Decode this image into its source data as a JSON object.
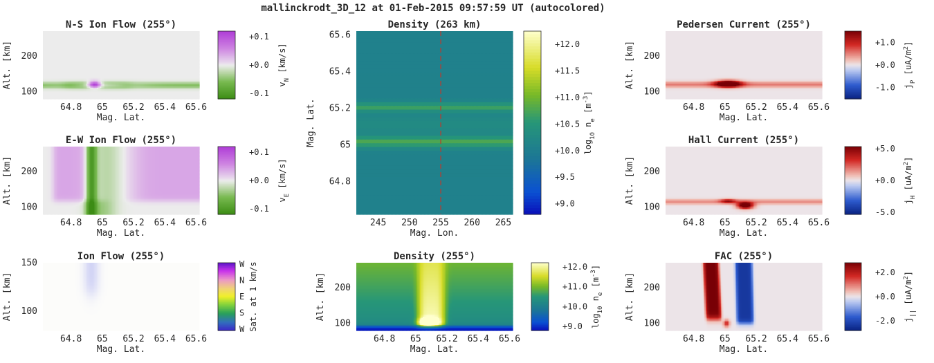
{
  "suptitle": "mallinckrodt_3D_12 at 01-Feb-2015 09:57:59 UT (autocolored)",
  "chart_data": [
    {
      "id": "ns-flow",
      "type": "heatmap",
      "title": "N-S Ion Flow (255°)",
      "xlabel": "Mag. Lat.",
      "ylabel": "Alt. [km]",
      "xlim": [
        64.62,
        65.62
      ],
      "ylim": [
        80,
        270
      ],
      "xticks": [
        64.8,
        65.0,
        65.2,
        65.4,
        65.6
      ],
      "xticklabels": [
        "64.8",
        "65",
        "65.2",
        "65.4",
        "65.6"
      ],
      "yticks": [
        100,
        200
      ],
      "yticklabels": [
        "100",
        "200"
      ],
      "colormap": "purple-green",
      "colorbar": {
        "label_main": "v",
        "label_sub": "N",
        "label_tail": " [km/s]",
        "ticks": [
          "+0.1",
          "+0.0",
          "-0.1"
        ],
        "range": [
          -0.12,
          0.12
        ]
      }
    },
    {
      "id": "density-263",
      "type": "heatmap",
      "title": "Density (263 km)",
      "xlabel": "Mag. Lon.",
      "ylabel": "Mag. Lat.",
      "xlim": [
        241.5,
        266.5
      ],
      "ylim": [
        64.62,
        65.62
      ],
      "xticks": [
        245,
        250,
        255,
        260,
        265
      ],
      "xticklabels": [
        "245",
        "250",
        "255",
        "260",
        "265"
      ],
      "yticks": [
        64.8,
        65.0,
        65.2,
        65.4,
        65.6
      ],
      "yticklabels": [
        "64.8",
        "65",
        "65.2",
        "65.4",
        "65.6"
      ],
      "colormap": "parula",
      "cut_line_lon": 255,
      "colorbar": {
        "label_main": "log",
        "label_sub": "10",
        "label_tail": " n",
        "label_sub2": "e",
        "label_unit": " [m",
        "label_sup": "-3",
        "label_close": "]",
        "ticks": [
          "+12.0",
          "+11.5",
          "+11.0",
          "+10.5",
          "+10.0",
          "+9.5",
          "+9.0"
        ],
        "range": [
          8.8,
          12.25
        ]
      }
    },
    {
      "id": "pedersen",
      "type": "heatmap",
      "title": "Pedersen Current (255°)",
      "xlabel": "Mag. Lat.",
      "ylabel": "Alt. [km]",
      "xlim": [
        64.62,
        65.62
      ],
      "ylim": [
        80,
        270
      ],
      "xticks": [
        64.8,
        65.0,
        65.2,
        65.4,
        65.6
      ],
      "xticklabels": [
        "64.8",
        "65",
        "65.2",
        "65.4",
        "65.6"
      ],
      "yticks": [
        100,
        200
      ],
      "yticklabels": [
        "100",
        "200"
      ],
      "colormap": "red-blue",
      "colorbar": {
        "label_main": "j",
        "label_sub": "P",
        "label_tail": " [uA/m",
        "label_sup": "2",
        "label_close": "]",
        "ticks": [
          "+1.0",
          "+0.0",
          "-1.0"
        ],
        "range": [
          -1.5,
          1.5
        ]
      }
    },
    {
      "id": "ew-flow",
      "type": "heatmap",
      "title": "E-W Ion Flow (255°)",
      "xlabel": "Mag. Lat.",
      "ylabel": "Alt. [km]",
      "xlim": [
        64.62,
        65.62
      ],
      "ylim": [
        80,
        270
      ],
      "xticks": [
        64.8,
        65.0,
        65.2,
        65.4,
        65.6
      ],
      "xticklabels": [
        "64.8",
        "65",
        "65.2",
        "65.4",
        "65.6"
      ],
      "yticks": [
        100,
        200
      ],
      "yticklabels": [
        "100",
        "200"
      ],
      "colormap": "purple-green",
      "colorbar": {
        "label_main": "v",
        "label_sub": "E",
        "label_tail": " [km/s]",
        "ticks": [
          "+0.1",
          "+0.0",
          "-0.1"
        ],
        "range": [
          -0.12,
          0.12
        ]
      }
    },
    {
      "id": "hall",
      "type": "heatmap",
      "title": "Hall Current (255°)",
      "xlabel": "Mag. Lat.",
      "ylabel": "Alt. [km]",
      "xlim": [
        64.62,
        65.62
      ],
      "ylim": [
        80,
        270
      ],
      "xticks": [
        64.8,
        65.0,
        65.2,
        65.4,
        65.6
      ],
      "xticklabels": [
        "64.8",
        "65",
        "65.2",
        "65.4",
        "65.6"
      ],
      "yticks": [
        100,
        200
      ],
      "yticklabels": [
        "100",
        "200"
      ],
      "colormap": "red-blue",
      "colorbar": {
        "label_main": "j",
        "label_sub": "H",
        "label_tail": " [uA/m",
        "label_sup": "2",
        "label_close": "]",
        "ticks": [
          "+5.0",
          "+0.0",
          "-5.0"
        ],
        "range": [
          -5.3,
          5.3
        ]
      }
    },
    {
      "id": "ion-flow",
      "type": "heatmap",
      "title": "Ion Flow (255°)",
      "xlabel": "Mag. Lat.",
      "ylabel": "Alt. [km]",
      "xlim": [
        64.62,
        65.62
      ],
      "ylim": [
        80,
        150
      ],
      "xticks": [
        64.8,
        65.0,
        65.2,
        65.4,
        65.6
      ],
      "xticklabels": [
        "64.8",
        "65",
        "65.2",
        "65.4",
        "65.6"
      ],
      "yticks": [
        100,
        150
      ],
      "yticklabels": [
        "100",
        "150"
      ],
      "colormap": "direction",
      "colorbar": {
        "label_main": "Sat. at 1 km/s",
        "ticks": [
          "W",
          "N",
          "E",
          "S",
          "W"
        ],
        "range": [
          0,
          4
        ]
      }
    },
    {
      "id": "density-255",
      "type": "heatmap",
      "title": "Density (255°)",
      "xlabel": "Mag. Lat.",
      "ylabel": "Alt. [km]",
      "xlim": [
        64.62,
        65.62
      ],
      "ylim": [
        80,
        270
      ],
      "xticks": [
        64.8,
        65.0,
        65.2,
        65.4,
        65.6
      ],
      "xticklabels": [
        "64.8",
        "65",
        "65.2",
        "65.4",
        "65.6"
      ],
      "yticks": [
        100,
        200
      ],
      "yticklabels": [
        "100",
        "200"
      ],
      "colormap": "parula",
      "colorbar": {
        "label_main": "log",
        "label_sub": "10",
        "label_tail": " n",
        "label_sub2": "e",
        "label_unit": " [m",
        "label_sup": "-3",
        "label_close": "]",
        "ticks": [
          "+12.0",
          "+11.0",
          "+10.0",
          "+9.0"
        ],
        "range": [
          8.8,
          12.2
        ]
      }
    },
    {
      "id": "fac",
      "type": "heatmap",
      "title": "FAC (255°)",
      "xlabel": "Mag. Lat.",
      "ylabel": "Alt. [km]",
      "xlim": [
        64.62,
        65.62
      ],
      "ylim": [
        80,
        270
      ],
      "xticks": [
        64.8,
        65.0,
        65.2,
        65.4,
        65.6
      ],
      "xticklabels": [
        "64.8",
        "65",
        "65.2",
        "65.4",
        "65.6"
      ],
      "yticks": [
        100,
        200
      ],
      "yticklabels": [
        "100",
        "200"
      ],
      "colormap": "red-blue",
      "colorbar": {
        "label_main": "j",
        "label_sub": "||",
        "label_tail": " [uA/m",
        "label_sup": "2",
        "label_close": "]",
        "ticks": [
          "+2.0",
          "+0.0",
          "-2.0"
        ],
        "range": [
          -2.8,
          2.8
        ]
      }
    }
  ]
}
